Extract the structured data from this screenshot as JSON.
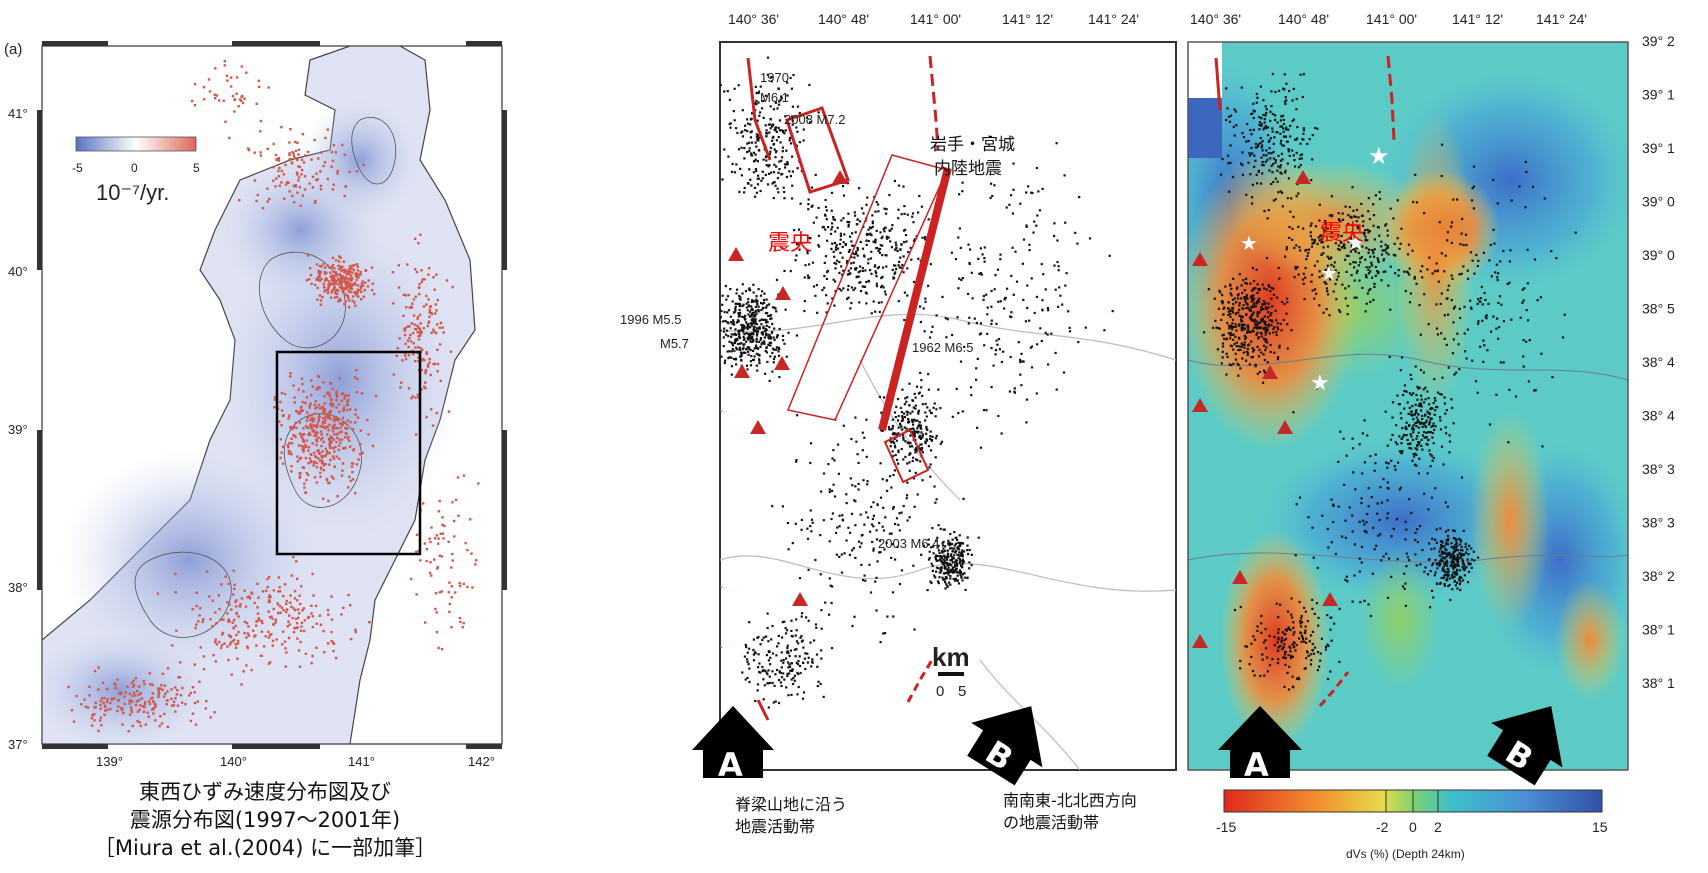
{
  "left_panel": {
    "panel_label": "(a)",
    "legend": {
      "min": "-5",
      "mid": "0",
      "max": "5",
      "unit": "10⁻⁷/yr."
    },
    "lat_labels": [
      "41°",
      "40°",
      "39°",
      "38°",
      "37°"
    ],
    "lon_labels": [
      "139°",
      "140°",
      "141°",
      "142°"
    ],
    "caption": [
      "東西ひずみ速度分布図及び",
      "震源分布図(1997～2001年)",
      "［Miura et al.(2004) に一部加筆］"
    ]
  },
  "middle_panel": {
    "top_lon_labels": [
      "140° 36'",
      "140° 48'",
      "141° 00'",
      "141° 12'",
      "141° 24'"
    ],
    "event_labels": [
      "1970",
      "M6.1",
      "2008 M7.2",
      "1996 M5.5",
      "M5.7",
      "1962 M6.5",
      "2003 M6.4"
    ],
    "region_label_line1": "岩手・宮城",
    "region_label_line2": "内陸地震",
    "epicenter_label": "震央",
    "scale_unit": "km",
    "scale_values": [
      "0",
      "5"
    ],
    "arrow_a": "A",
    "arrow_b": "B",
    "caption_a": [
      "脊梁山地に沿う",
      "地震活動帯"
    ],
    "caption_b": [
      "南南東-北北西方向",
      "の地震活動帯"
    ]
  },
  "right_panel": {
    "top_lon_labels": [
      "140° 36'",
      "140° 48'",
      "141° 00'",
      "141° 12'",
      "141° 24'"
    ],
    "right_lat_labels": [
      "39° 2",
      "39° 1",
      "39° 1",
      "39° 0",
      "39° 0",
      "38° 5",
      "38° 4",
      "38° 4",
      "38° 3",
      "38° 3",
      "38° 2",
      "38° 1",
      "38° 1"
    ],
    "epicenter_label": "震央",
    "arrow_a": "A",
    "arrow_b": "B",
    "colorbar": {
      "min": "-15",
      "t1": "-2",
      "t2": "0",
      "t3": "2",
      "max": "15",
      "label": "dVs (%) (Depth 24km)"
    }
  },
  "colors": {
    "seismic_dot": "#d4574a",
    "strain_blue": "#8f9fd1",
    "epicenter_red": "#ff0000",
    "volcano_red": "#c62828"
  }
}
